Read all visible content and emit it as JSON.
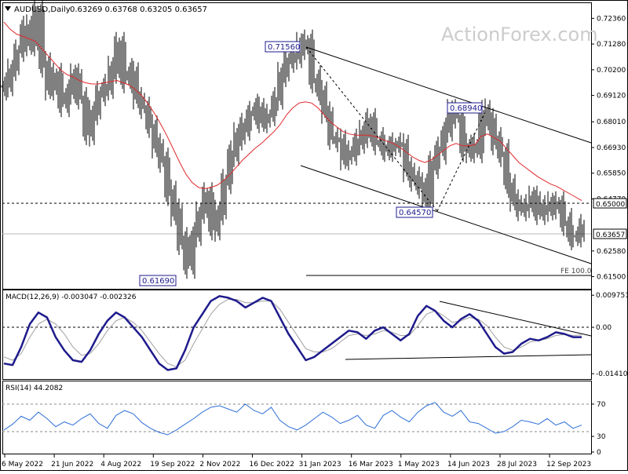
{
  "header": {
    "symbol": "AUDUSD,Daily",
    "ohlc": "0.63269 0.63768 0.63205 0.63657"
  },
  "watermark": "ActionForex.com",
  "colors": {
    "price": "#000000",
    "sma": "#e0282c",
    "macd": "#1e1b8c",
    "signal": "#a0a0a0",
    "rsi": "#2e6fd8",
    "label_box": "#1e1b8c",
    "grid": "#888888"
  },
  "x_axis": {
    "labels": [
      "6 May 2022",
      "21 Jun 2022",
      "4 Aug 2022",
      "19 Sep 2022",
      "2 Nov 2022",
      "16 Dec 2022",
      "31 Jan 2023",
      "16 Mar 2023",
      "1 May 2023",
      "14 Jun 2023",
      "28 Jul 2023",
      "12 Sep 2023"
    ]
  },
  "chart_data": [
    {
      "type": "line",
      "panel": "price",
      "ylim": [
        0.6099,
        0.73
      ],
      "y_ticks": [
        "0.72360",
        "0.71280",
        "0.70200",
        "0.69120",
        "0.68010",
        "0.66930",
        "0.65850",
        "0.64770",
        "0.63657",
        "0.62580",
        "0.61500"
      ],
      "series": [
        {
          "name": "",
          "values": [
            0.695,
            0.702,
            0.71,
            0.72,
            0.713,
            0.726,
            0.704,
            0.695,
            0.699,
            0.688,
            0.692,
            0.7,
            0.69,
            0.675,
            0.684,
            0.692,
            0.695,
            0.702,
            0.712,
            0.698,
            0.701,
            0.69,
            0.686,
            0.678,
            0.67,
            0.664,
            0.65,
            0.642,
            0.63,
            0.62,
            0.632,
            0.642,
            0.65,
            0.635,
            0.642,
            0.655,
            0.667,
            0.674,
            0.678,
            0.683,
            0.686,
            0.68,
            0.683,
            0.69,
            0.7,
            0.706,
            0.708,
            0.712,
            0.713,
            0.698,
            0.693,
            0.684,
            0.673,
            0.672,
            0.665,
            0.667,
            0.672,
            0.675,
            0.68,
            0.672,
            0.67,
            0.668,
            0.671,
            0.67,
            0.66,
            0.656,
            0.653,
            0.648,
            0.662,
            0.668,
            0.676,
            0.685,
            0.682,
            0.668,
            0.67,
            0.668,
            0.684,
            0.68,
            0.672,
            0.667,
            0.654,
            0.647,
            0.643,
            0.645,
            0.648,
            0.642,
            0.644,
            0.645,
            0.645,
            0.638,
            0.632,
            0.632,
            0.6366
          ]
        },
        {
          "name": "",
          "values": [
            0.722,
            0.719,
            0.717,
            0.716,
            0.715,
            0.714,
            0.711,
            0.708,
            0.705,
            0.702,
            0.7,
            0.699,
            0.6975,
            0.6965,
            0.696,
            0.696,
            0.6965,
            0.697,
            0.6975,
            0.6965,
            0.6955,
            0.6935,
            0.691,
            0.6875,
            0.6835,
            0.679,
            0.674,
            0.6685,
            0.663,
            0.658,
            0.6545,
            0.6525,
            0.652,
            0.6525,
            0.6535,
            0.6555,
            0.658,
            0.661,
            0.664,
            0.6665,
            0.669,
            0.671,
            0.6735,
            0.676,
            0.679,
            0.683,
            0.686,
            0.688,
            0.6885,
            0.688,
            0.686,
            0.683,
            0.68,
            0.678,
            0.676,
            0.675,
            0.6745,
            0.6745,
            0.6745,
            0.674,
            0.673,
            0.672,
            0.671,
            0.6695,
            0.6675,
            0.6655,
            0.664,
            0.663,
            0.664,
            0.666,
            0.668,
            0.67,
            0.671,
            0.67,
            0.67,
            0.6705,
            0.674,
            0.675,
            0.6735,
            0.672,
            0.669,
            0.666,
            0.663,
            0.661,
            0.659,
            0.657,
            0.6555,
            0.654,
            0.653,
            0.6515,
            0.65,
            0.6485,
            0.647
          ]
        }
      ],
      "annotations": [
        "0.71560",
        "0.68940",
        "0.64570",
        "0.61690",
        "0.65000",
        "0.63657",
        "FE 100.0"
      ]
    },
    {
      "type": "line",
      "panel": "macd",
      "title": "MACD(12,26,9) -0.003047 -0.002326",
      "ylim": [
        -0.0155,
        0.011
      ],
      "y_ticks": [
        "0.009751",
        "0.00",
        "-0.014107"
      ],
      "series": [
        {
          "name": "",
          "values": [
            -0.011,
            -0.0115,
            -0.006,
            0.001,
            0.0045,
            0.003,
            -0.003,
            -0.007,
            -0.01,
            -0.0105,
            -0.007,
            -0.002,
            0.002,
            0.0045,
            0.003,
            0.0,
            -0.003,
            -0.007,
            -0.011,
            -0.013,
            -0.0125,
            -0.007,
            0.0,
            0.004,
            0.008,
            0.0095,
            0.009,
            0.008,
            0.006,
            0.0075,
            0.009,
            0.008,
            0.003,
            -0.002,
            -0.006,
            -0.01,
            -0.009,
            -0.007,
            -0.005,
            -0.003,
            -0.001,
            -0.0015,
            -0.0035,
            -0.001,
            0.0,
            -0.002,
            -0.004,
            -0.002,
            0.0035,
            0.0065,
            0.005,
            0.002,
            0.0,
            0.0025,
            0.004,
            0.002,
            -0.002,
            -0.006,
            -0.008,
            -0.0075,
            -0.005,
            -0.0035,
            -0.004,
            -0.003,
            -0.0015,
            -0.002,
            -0.003,
            -0.003
          ]
        },
        {
          "name": "",
          "values": [
            -0.009,
            -0.01,
            -0.008,
            -0.003,
            0.001,
            0.0025,
            0.001,
            -0.002,
            -0.006,
            -0.0085,
            -0.008,
            -0.005,
            -0.001,
            0.002,
            0.003,
            0.0015,
            -0.001,
            -0.0045,
            -0.008,
            -0.011,
            -0.012,
            -0.01,
            -0.005,
            -0.0005,
            0.004,
            0.007,
            0.0085,
            0.0085,
            0.0075,
            0.0075,
            0.008,
            0.008,
            0.0055,
            0.0015,
            -0.0025,
            -0.0065,
            -0.0075,
            -0.0075,
            -0.0065,
            -0.0045,
            -0.0025,
            -0.002,
            -0.0025,
            -0.002,
            -0.001,
            -0.0015,
            -0.0025,
            -0.0025,
            0.0005,
            0.004,
            0.005,
            0.0035,
            0.0015,
            0.002,
            0.003,
            0.0025,
            0.0005,
            -0.003,
            -0.006,
            -0.007,
            -0.006,
            -0.0045,
            -0.004,
            -0.0035,
            -0.0025,
            -0.0022,
            -0.0025,
            -0.0023
          ]
        }
      ]
    },
    {
      "type": "line",
      "panel": "rsi",
      "title": "RSI(14) 44.2082",
      "ylim": [
        0,
        100
      ],
      "y_ticks": [
        "70",
        "30",
        "0"
      ],
      "series": [
        {
          "name": "",
          "values": [
            38,
            45,
            55,
            50,
            60,
            52,
            42,
            48,
            44,
            52,
            58,
            46,
            40,
            56,
            62,
            58,
            47,
            40,
            35,
            32,
            38,
            45,
            52,
            60,
            66,
            68,
            64,
            60,
            70,
            62,
            58,
            66,
            50,
            42,
            38,
            44,
            52,
            60,
            54,
            46,
            50,
            56,
            44,
            40,
            56,
            62,
            54,
            48,
            60,
            68,
            72,
            60,
            55,
            62,
            48,
            46,
            40,
            34,
            36,
            42,
            50,
            48,
            45,
            52,
            44,
            48,
            40,
            44
          ]
        }
      ]
    }
  ]
}
